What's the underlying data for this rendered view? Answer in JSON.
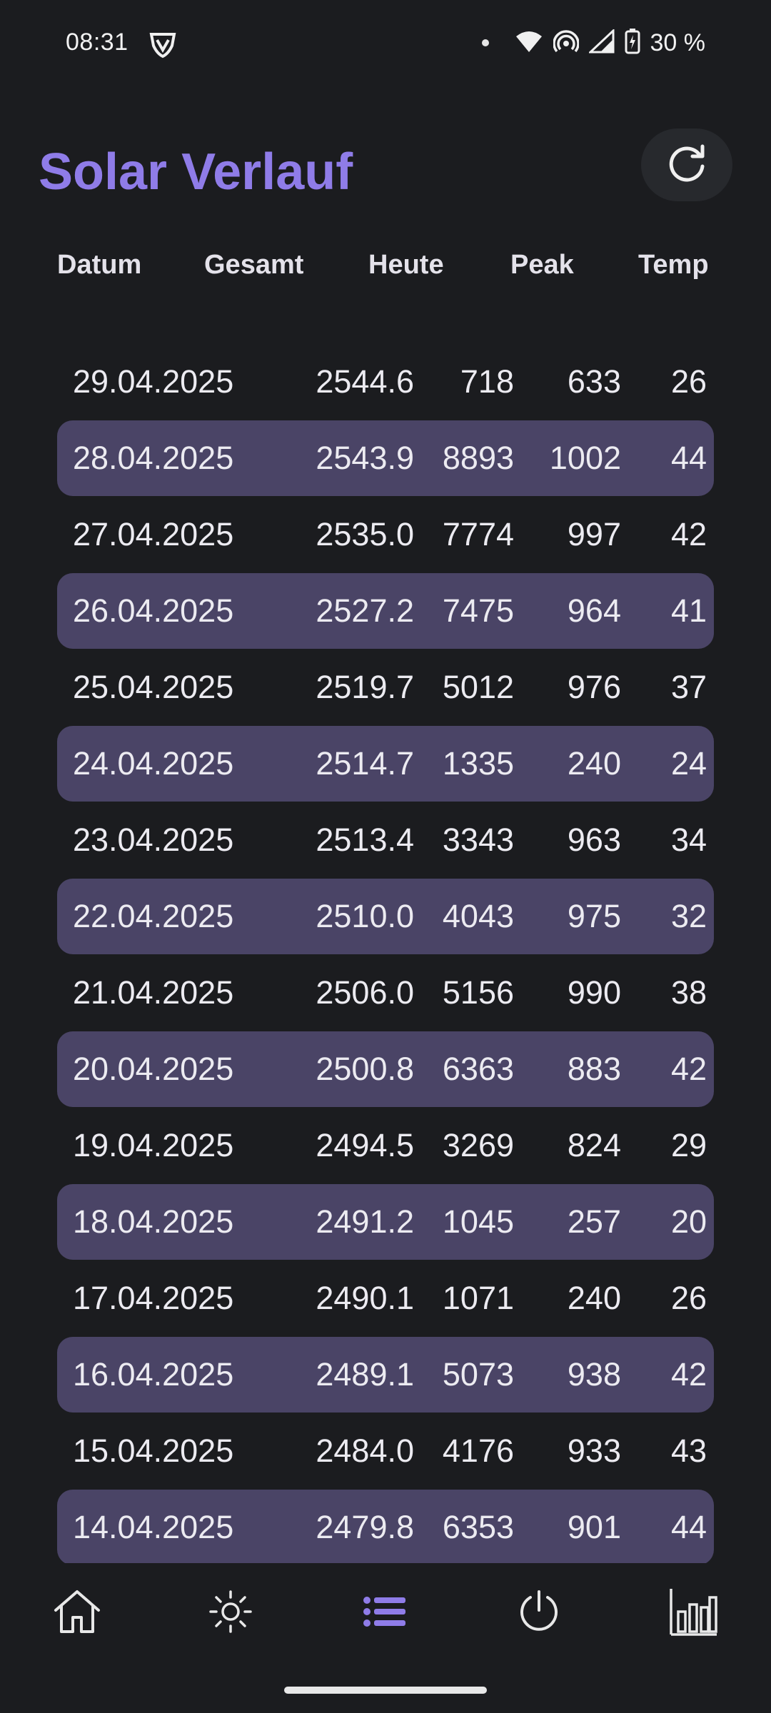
{
  "status_bar": {
    "time": "08:31",
    "battery": "30 %"
  },
  "app": {
    "title": "Solar Verlauf"
  },
  "table": {
    "columns": [
      "Datum",
      "Gesamt",
      "Heute",
      "Peak",
      "Temp"
    ],
    "rows": [
      [
        "29.04.2025",
        "2544.6",
        "718",
        "633",
        "26"
      ],
      [
        "28.04.2025",
        "2543.9",
        "8893",
        "1002",
        "44"
      ],
      [
        "27.04.2025",
        "2535.0",
        "7774",
        "997",
        "42"
      ],
      [
        "26.04.2025",
        "2527.2",
        "7475",
        "964",
        "41"
      ],
      [
        "25.04.2025",
        "2519.7",
        "5012",
        "976",
        "37"
      ],
      [
        "24.04.2025",
        "2514.7",
        "1335",
        "240",
        "24"
      ],
      [
        "23.04.2025",
        "2513.4",
        "3343",
        "963",
        "34"
      ],
      [
        "22.04.2025",
        "2510.0",
        "4043",
        "975",
        "32"
      ],
      [
        "21.04.2025",
        "2506.0",
        "5156",
        "990",
        "38"
      ],
      [
        "20.04.2025",
        "2500.8",
        "6363",
        "883",
        "42"
      ],
      [
        "19.04.2025",
        "2494.5",
        "3269",
        "824",
        "29"
      ],
      [
        "18.04.2025",
        "2491.2",
        "1045",
        "257",
        "20"
      ],
      [
        "17.04.2025",
        "2490.1",
        "1071",
        "240",
        "26"
      ],
      [
        "16.04.2025",
        "2489.1",
        "5073",
        "938",
        "42"
      ],
      [
        "15.04.2025",
        "2484.0",
        "4176",
        "933",
        "43"
      ],
      [
        "14.04.2025",
        "2479.8",
        "6353",
        "901",
        "44"
      ]
    ]
  },
  "nav": {
    "items": [
      "home-icon",
      "sun-icon",
      "list-icon",
      "power-icon",
      "bar-chart-icon"
    ],
    "active": "list-icon"
  },
  "colors": {
    "accent": "#8f7ce8",
    "row_highlight": "#4a4466",
    "background": "#1b1c1f"
  }
}
